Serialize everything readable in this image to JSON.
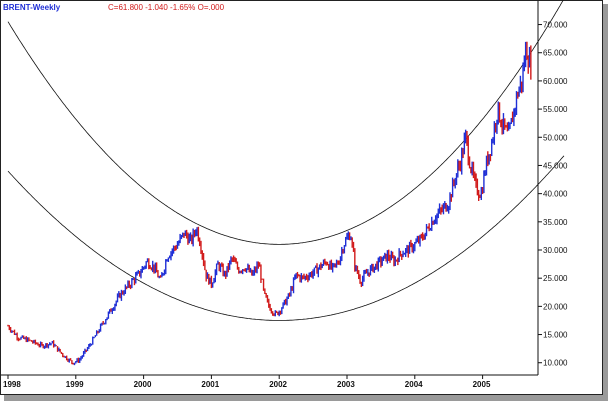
{
  "header": {
    "title": "BRENT-Weekly",
    "quote": "C=61.800  -1.040  -1.65%  O=.000"
  },
  "colors": {
    "up": "#1f2fd6",
    "down": "#d11a1a",
    "title": "#1f2fd6",
    "quote": "#d11a1a",
    "arc": "#111111"
  },
  "chart_data": {
    "type": "candlestick",
    "title": "BRENT-Weekly",
    "series_name": "BRENT",
    "x_range": [
      1998.0,
      2006.2
    ],
    "ylim": [
      8,
      74
    ],
    "y_ticks": [
      "10.000",
      "15.000",
      "20.000",
      "25.000",
      "30.000",
      "35.000",
      "40.000",
      "45.000",
      "50.000",
      "55.000",
      "60.000",
      "65.000",
      "70.000"
    ],
    "y_tick_values": [
      10,
      15,
      20,
      25,
      30,
      35,
      40,
      45,
      50,
      55,
      60,
      65,
      70
    ],
    "x_ticks": [
      "1998",
      "1999",
      "2000",
      "2001",
      "2002",
      "2003",
      "2004",
      "2005"
    ],
    "x_tick_values": [
      1998.0,
      1999.0,
      2000.0,
      2001.0,
      2002.0,
      2003.0,
      2004.0,
      2005.0
    ],
    "last_close": 61.8,
    "change": -1.04,
    "change_pct": -1.65,
    "arcs": [
      {
        "vertex_x": 2002.0,
        "vertex_y": 31.0,
        "through_x": 1998.0,
        "through_y": 70.5
      },
      {
        "vertex_x": 2002.0,
        "vertex_y": 17.5,
        "through_x": 1998.0,
        "through_y": 44.0
      }
    ],
    "price_path": [
      [
        1998.0,
        16.5
      ],
      [
        1998.15,
        14.5
      ],
      [
        1998.3,
        14.0
      ],
      [
        1998.5,
        13.0
      ],
      [
        1998.65,
        13.5
      ],
      [
        1998.8,
        11.5
      ],
      [
        1998.95,
        10.0
      ],
      [
        1999.05,
        10.5
      ],
      [
        1999.2,
        13.0
      ],
      [
        1999.35,
        16.0
      ],
      [
        1999.5,
        19.0
      ],
      [
        1999.65,
        22.0
      ],
      [
        1999.8,
        24.0
      ],
      [
        1999.95,
        26.0
      ],
      [
        2000.05,
        28.0
      ],
      [
        2000.15,
        27.0
      ],
      [
        2000.25,
        24.5
      ],
      [
        2000.35,
        29.0
      ],
      [
        2000.5,
        31.0
      ],
      [
        2000.6,
        33.0
      ],
      [
        2000.7,
        31.5
      ],
      [
        2000.78,
        34.0
      ],
      [
        2000.85,
        30.5
      ],
      [
        2000.92,
        25.5
      ],
      [
        2001.0,
        24.0
      ],
      [
        2001.1,
        27.5
      ],
      [
        2001.2,
        25.5
      ],
      [
        2001.3,
        28.5
      ],
      [
        2001.4,
        26.5
      ],
      [
        2001.5,
        27.0
      ],
      [
        2001.6,
        25.5
      ],
      [
        2001.7,
        27.5
      ],
      [
        2001.78,
        22.0
      ],
      [
        2001.85,
        20.0
      ],
      [
        2001.95,
        18.5
      ],
      [
        2002.05,
        20.0
      ],
      [
        2002.15,
        22.0
      ],
      [
        2002.25,
        25.5
      ],
      [
        2002.35,
        25.0
      ],
      [
        2002.5,
        26.0
      ],
      [
        2002.6,
        27.0
      ],
      [
        2002.7,
        28.0
      ],
      [
        2002.78,
        26.5
      ],
      [
        2002.88,
        28.0
      ],
      [
        2002.95,
        31.0
      ],
      [
        2003.05,
        33.0
      ],
      [
        2003.12,
        27.0
      ],
      [
        2003.2,
        24.5
      ],
      [
        2003.3,
        26.0
      ],
      [
        2003.4,
        27.0
      ],
      [
        2003.5,
        28.0
      ],
      [
        2003.6,
        29.0
      ],
      [
        2003.7,
        28.0
      ],
      [
        2003.8,
        29.5
      ],
      [
        2003.9,
        30.0
      ],
      [
        2004.0,
        31.0
      ],
      [
        2004.1,
        32.0
      ],
      [
        2004.2,
        34.0
      ],
      [
        2004.3,
        36.0
      ],
      [
        2004.4,
        37.0
      ],
      [
        2004.5,
        38.5
      ],
      [
        2004.6,
        43.0
      ],
      [
        2004.68,
        46.0
      ],
      [
        2004.75,
        50.0
      ],
      [
        2004.82,
        45.0
      ],
      [
        2004.9,
        41.0
      ],
      [
        2004.98,
        40.0
      ],
      [
        2005.05,
        45.0
      ],
      [
        2005.15,
        50.0
      ],
      [
        2005.22,
        55.0
      ],
      [
        2005.3,
        52.0
      ],
      [
        2005.38,
        50.0
      ],
      [
        2005.45,
        54.0
      ],
      [
        2005.52,
        58.0
      ],
      [
        2005.58,
        60.0
      ],
      [
        2005.64,
        66.0
      ],
      [
        2005.7,
        63.0
      ],
      [
        2005.73,
        61.8
      ]
    ]
  }
}
